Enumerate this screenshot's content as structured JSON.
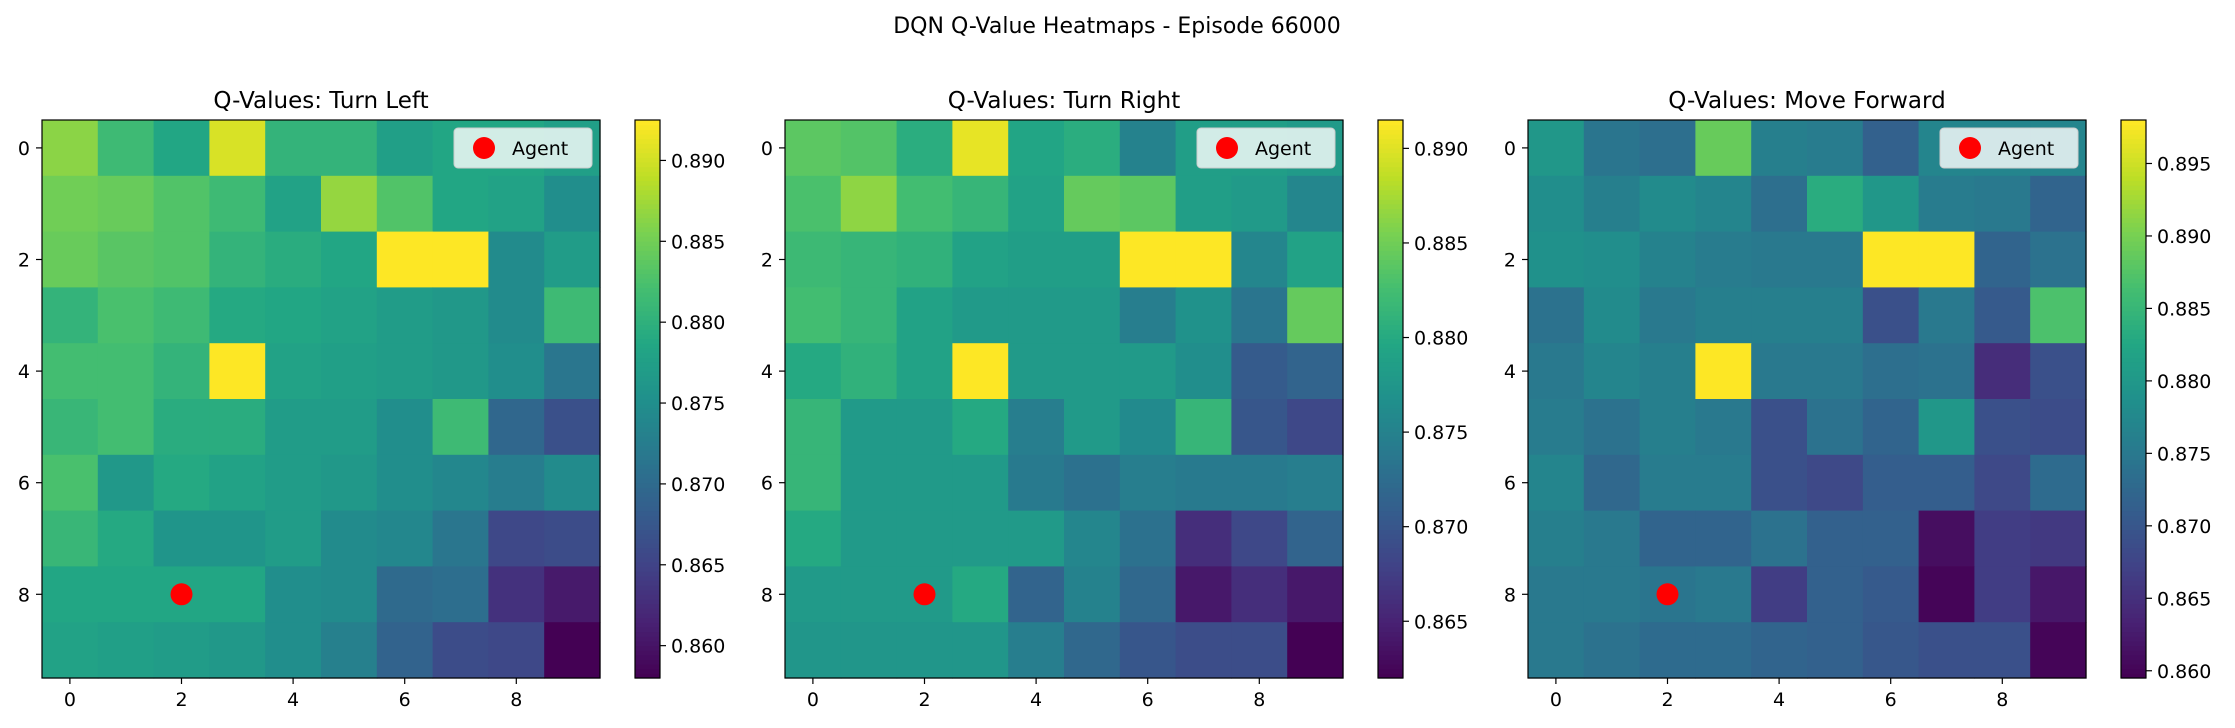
{
  "chart_data": {
    "suptitle": "DQN Q-Value Heatmaps - Episode 66000",
    "type": "heatmap",
    "colormap": "viridis",
    "agent": {
      "x": 2,
      "y": 8,
      "color": "#ff0000",
      "legend_label": "Agent"
    },
    "legend_position": "top-right",
    "x_ticks": [
      "0",
      "2",
      "4",
      "6",
      "8"
    ],
    "y_ticks": [
      "0",
      "2",
      "4",
      "6",
      "8"
    ],
    "panels": [
      {
        "title": "Q-Values: Turn Left",
        "vmin": 0.858,
        "vmax": 0.8925,
        "colorbar_ticks": [
          "0.860",
          "0.865",
          "0.870",
          "0.875",
          "0.880",
          "0.885",
          "0.890"
        ],
        "grid": [
          [
            0.8865,
            0.8815,
            0.8785,
            0.8905,
            0.8805,
            0.8805,
            0.8775,
            0.8785,
            0.8785,
            0.8775
          ],
          [
            0.885,
            0.8845,
            0.883,
            0.8815,
            0.878,
            0.887,
            0.883,
            0.8785,
            0.878,
            0.875
          ],
          [
            0.8845,
            0.8835,
            0.883,
            0.8805,
            0.8795,
            0.8785,
            0.8925,
            0.8925,
            0.8745,
            0.877
          ],
          [
            0.8805,
            0.8825,
            0.8815,
            0.879,
            0.8785,
            0.878,
            0.877,
            0.8765,
            0.8745,
            0.8815
          ],
          [
            0.882,
            0.882,
            0.8805,
            0.8925,
            0.878,
            0.8775,
            0.877,
            0.8765,
            0.875,
            0.8715
          ],
          [
            0.881,
            0.882,
            0.8795,
            0.8795,
            0.877,
            0.877,
            0.875,
            0.8815,
            0.8695,
            0.8665
          ],
          [
            0.8825,
            0.8765,
            0.879,
            0.878,
            0.877,
            0.8765,
            0.875,
            0.874,
            0.8725,
            0.8745
          ],
          [
            0.881,
            0.879,
            0.876,
            0.876,
            0.877,
            0.8745,
            0.874,
            0.8715,
            0.8655,
            0.866
          ],
          [
            0.8785,
            0.8785,
            0.8785,
            0.8785,
            0.875,
            0.8745,
            0.87,
            0.8705,
            0.863,
            0.8605
          ],
          [
            0.878,
            0.8775,
            0.877,
            0.8765,
            0.875,
            0.873,
            0.869,
            0.866,
            0.8655,
            0.858
          ]
        ]
      },
      {
        "title": "Q-Values: Turn Right",
        "vmin": 0.862,
        "vmax": 0.8915,
        "colorbar_ticks": [
          "0.865",
          "0.870",
          "0.875",
          "0.880",
          "0.885",
          "0.890"
        ],
        "grid": [
          [
            0.884,
            0.8835,
            0.8805,
            0.8905,
            0.8795,
            0.8805,
            0.875,
            0.8785,
            0.8785,
            0.878
          ],
          [
            0.883,
            0.8865,
            0.8825,
            0.8815,
            0.879,
            0.8845,
            0.884,
            0.8785,
            0.878,
            0.8755
          ],
          [
            0.882,
            0.8815,
            0.881,
            0.879,
            0.8785,
            0.8785,
            0.8915,
            0.8915,
            0.8755,
            0.879
          ],
          [
            0.8825,
            0.8815,
            0.879,
            0.878,
            0.878,
            0.878,
            0.8745,
            0.877,
            0.8735,
            0.8845
          ],
          [
            0.88,
            0.881,
            0.879,
            0.8915,
            0.878,
            0.878,
            0.878,
            0.8765,
            0.8705,
            0.8715
          ],
          [
            0.8815,
            0.878,
            0.878,
            0.88,
            0.8745,
            0.878,
            0.876,
            0.8815,
            0.87,
            0.8685
          ],
          [
            0.8815,
            0.878,
            0.878,
            0.878,
            0.874,
            0.873,
            0.8745,
            0.874,
            0.874,
            0.8745
          ],
          [
            0.88,
            0.878,
            0.878,
            0.878,
            0.878,
            0.8755,
            0.873,
            0.866,
            0.8685,
            0.8715
          ],
          [
            0.878,
            0.878,
            0.878,
            0.88,
            0.8715,
            0.875,
            0.872,
            0.864,
            0.866,
            0.864
          ],
          [
            0.8775,
            0.8775,
            0.8775,
            0.8775,
            0.8745,
            0.872,
            0.87,
            0.869,
            0.869,
            0.862
          ]
        ]
      },
      {
        "title": "Q-Values: Move Forward",
        "vmin": 0.8595,
        "vmax": 0.898,
        "colorbar_ticks": [
          "0.860",
          "0.865",
          "0.870",
          "0.875",
          "0.880",
          "0.885",
          "0.890",
          "0.895"
        ],
        "grid": [
          [
            0.88,
            0.8745,
            0.8735,
            0.889,
            0.876,
            0.8755,
            0.8715,
            0.877,
            0.877,
            0.877
          ],
          [
            0.8785,
            0.876,
            0.878,
            0.877,
            0.8735,
            0.8835,
            0.88,
            0.8755,
            0.875,
            0.872
          ],
          [
            0.879,
            0.8785,
            0.8765,
            0.8755,
            0.875,
            0.875,
            0.898,
            0.898,
            0.872,
            0.874
          ],
          [
            0.874,
            0.878,
            0.875,
            0.876,
            0.876,
            0.876,
            0.869,
            0.875,
            0.8705,
            0.887
          ],
          [
            0.875,
            0.877,
            0.876,
            0.898,
            0.875,
            0.875,
            0.8735,
            0.874,
            0.8645,
            0.869
          ],
          [
            0.8755,
            0.874,
            0.876,
            0.875,
            0.869,
            0.874,
            0.872,
            0.88,
            0.869,
            0.8685
          ],
          [
            0.877,
            0.8725,
            0.8755,
            0.8755,
            0.869,
            0.868,
            0.871,
            0.871,
            0.868,
            0.873
          ],
          [
            0.876,
            0.875,
            0.872,
            0.872,
            0.874,
            0.8715,
            0.8715,
            0.861,
            0.8665,
            0.866
          ],
          [
            0.875,
            0.875,
            0.8745,
            0.875,
            0.8665,
            0.8715,
            0.8705,
            0.86,
            0.8665,
            0.862
          ],
          [
            0.875,
            0.874,
            0.873,
            0.873,
            0.872,
            0.8715,
            0.87,
            0.869,
            0.869,
            0.86
          ]
        ]
      }
    ]
  }
}
